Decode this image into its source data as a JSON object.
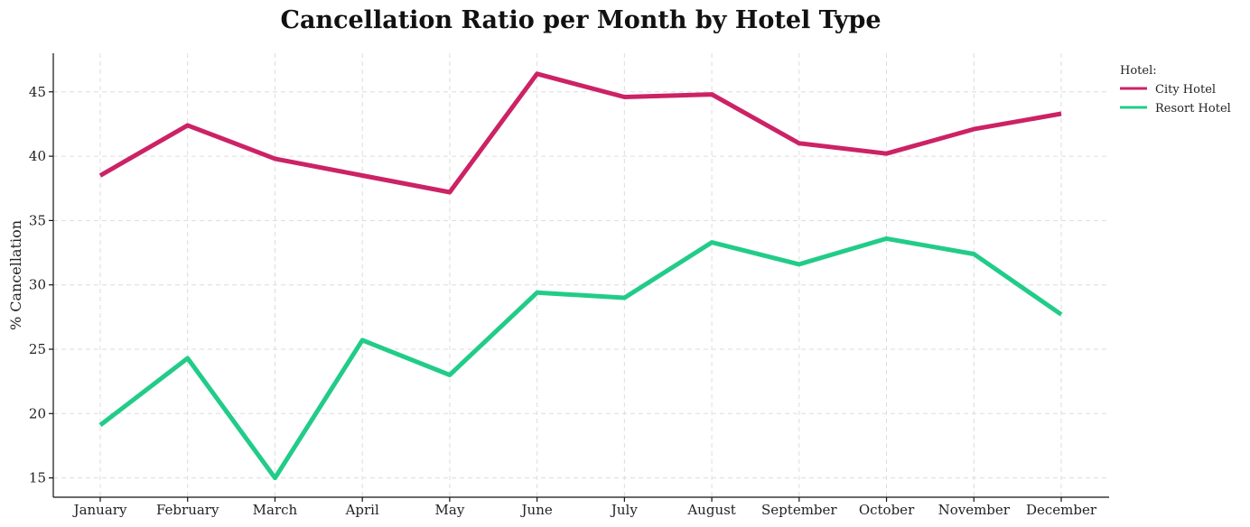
{
  "chart_data": {
    "type": "line",
    "title": "Cancellation Ratio per Month by Hotel Type",
    "xlabel": "",
    "ylabel": "% Cancellation",
    "categories": [
      "January",
      "February",
      "March",
      "April",
      "May",
      "June",
      "July",
      "August",
      "September",
      "October",
      "November",
      "December"
    ],
    "ylim": [
      13.5,
      48
    ],
    "yticks": [
      15,
      20,
      25,
      30,
      35,
      40,
      45
    ],
    "grid": true,
    "legend": {
      "title": "Hotel:",
      "placement": "top-right-outside"
    },
    "series": [
      {
        "name": "City Hotel",
        "color": "#cc2266",
        "values": [
          38.5,
          42.4,
          39.8,
          38.5,
          37.2,
          46.4,
          44.6,
          44.8,
          41.0,
          40.2,
          42.1,
          43.3
        ]
      },
      {
        "name": "Resort Hotel",
        "color": "#22cc88",
        "values": [
          19.1,
          24.3,
          15.0,
          25.7,
          23.0,
          29.4,
          29.0,
          33.3,
          31.6,
          33.6,
          32.4,
          27.7
        ]
      }
    ]
  }
}
